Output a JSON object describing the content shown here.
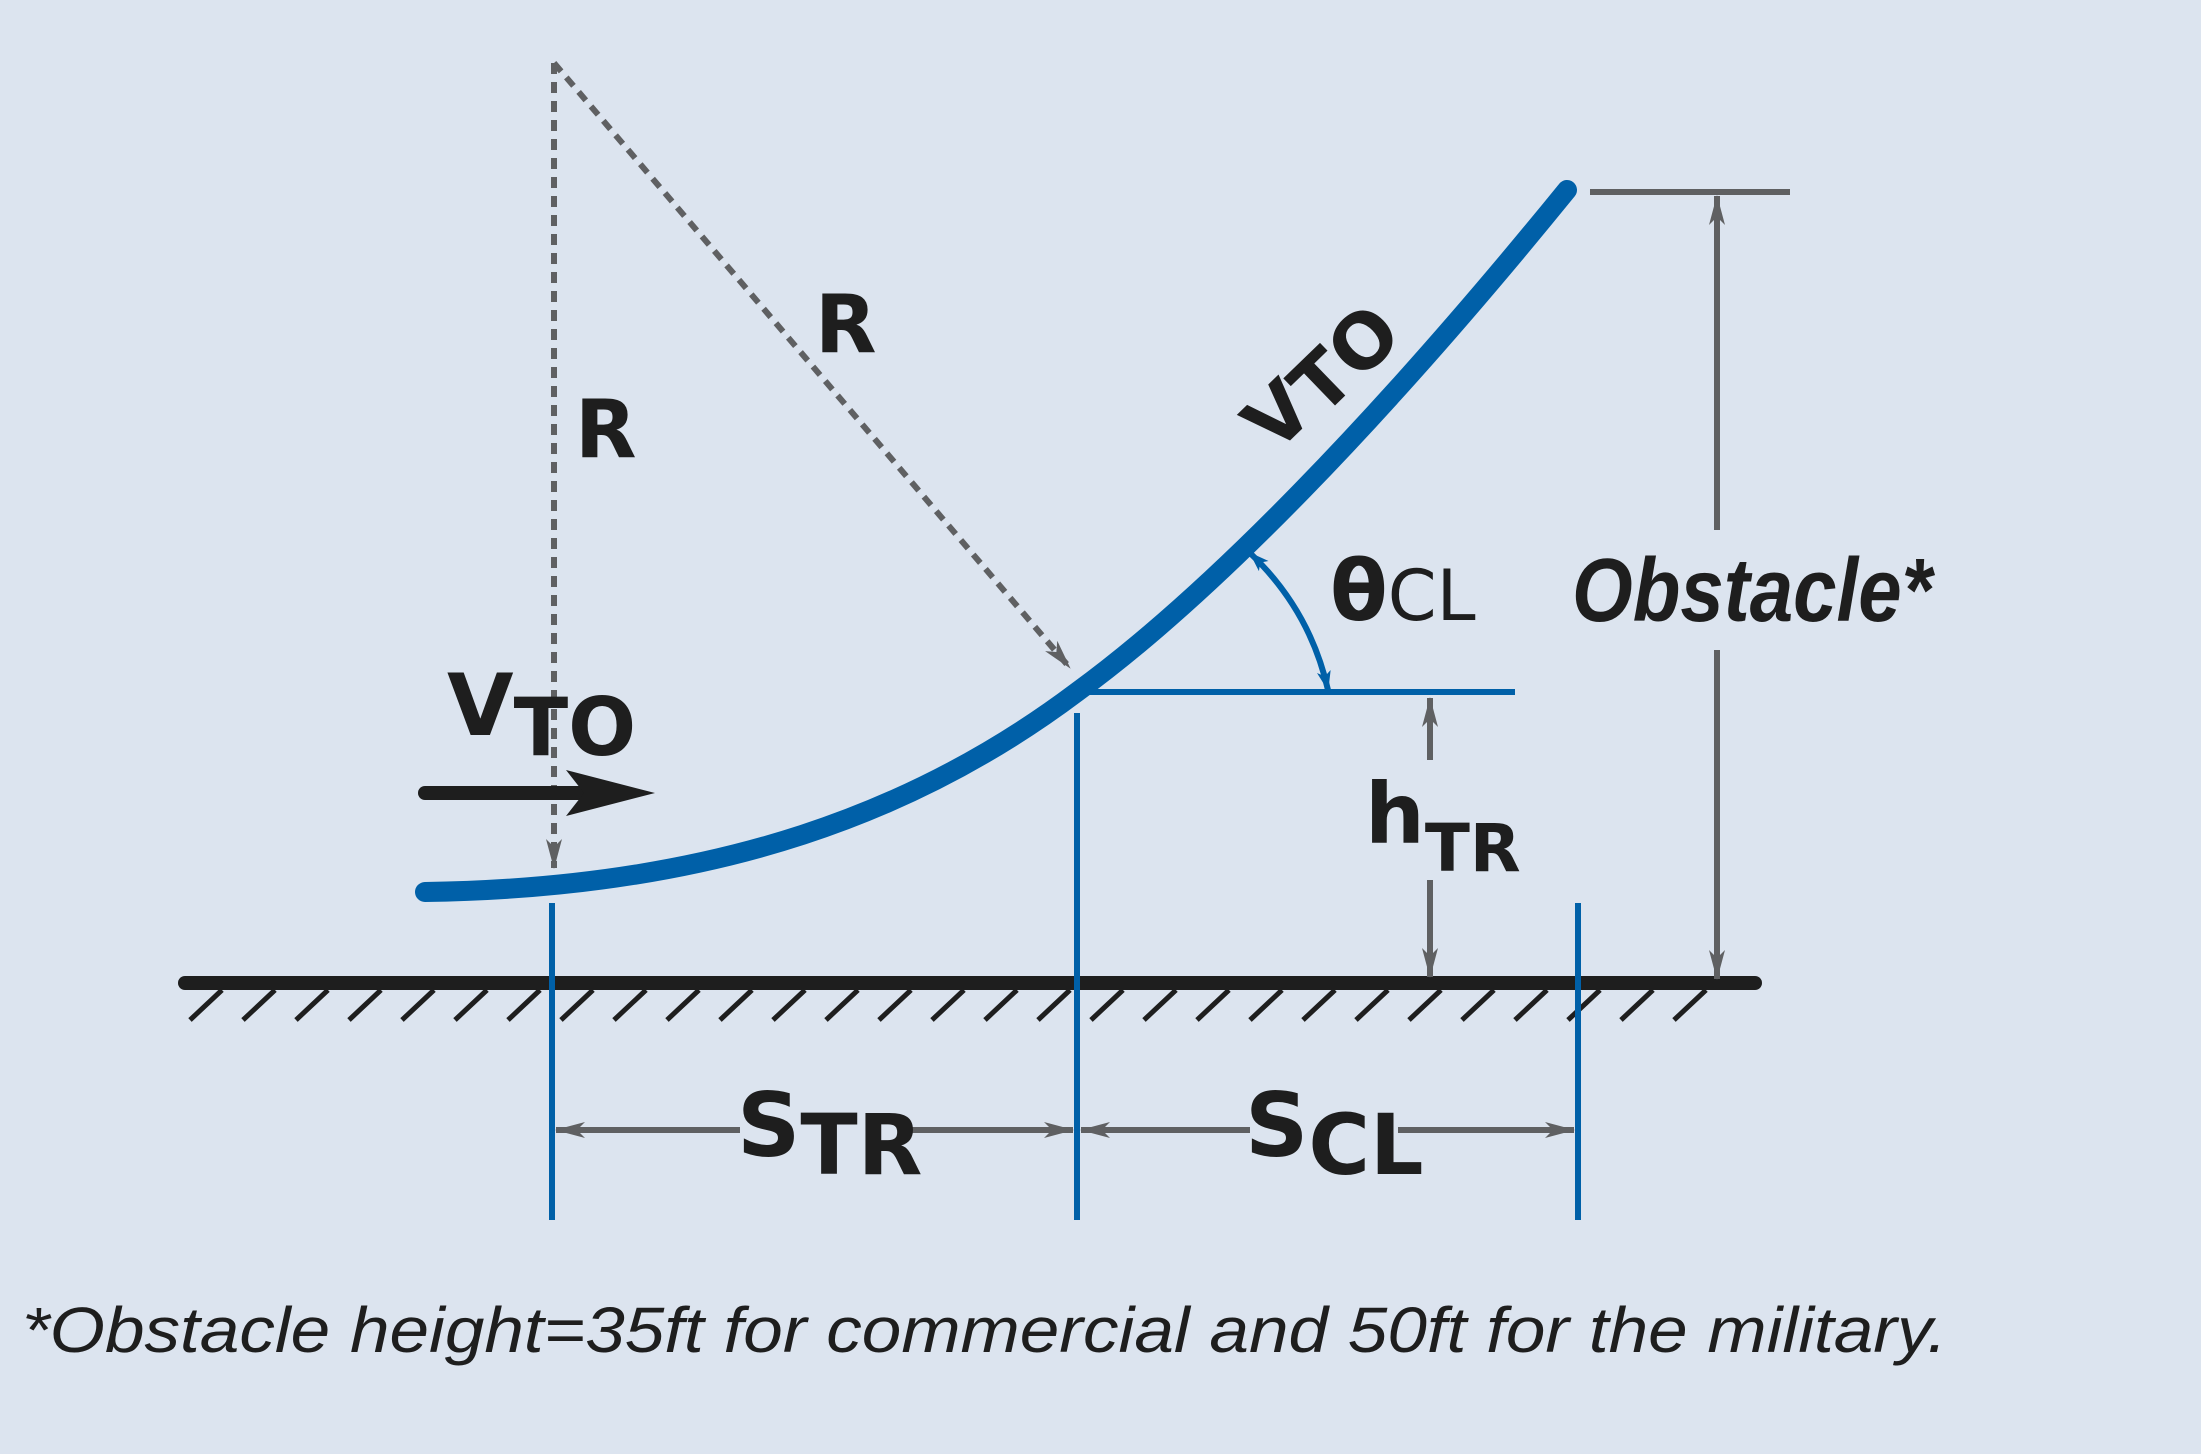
{
  "labels": {
    "radius_vertical": "R",
    "radius_diagonal": "R",
    "velocity_ground": {
      "main": "V",
      "sub": "TO"
    },
    "velocity_climb": {
      "main": "V",
      "sub": "TO"
    },
    "climb_angle": {
      "main": "θ",
      "sub": "CL"
    },
    "transition_height": {
      "main": "h",
      "sub": "TR"
    },
    "obstacle": "Obstacle*",
    "transition_distance": {
      "main": "S",
      "sub": "TR"
    },
    "climb_distance": {
      "main": "S",
      "sub": "CL"
    }
  },
  "footnote": "*Obstacle height=35ft for commercial and 50ft for the military.",
  "colors": {
    "background": "#dce4ef",
    "flight_path": "#0060a8",
    "dimension_arrows": "#5f6062",
    "ground": "#1e1e1e",
    "text": "#1e1e1e"
  }
}
